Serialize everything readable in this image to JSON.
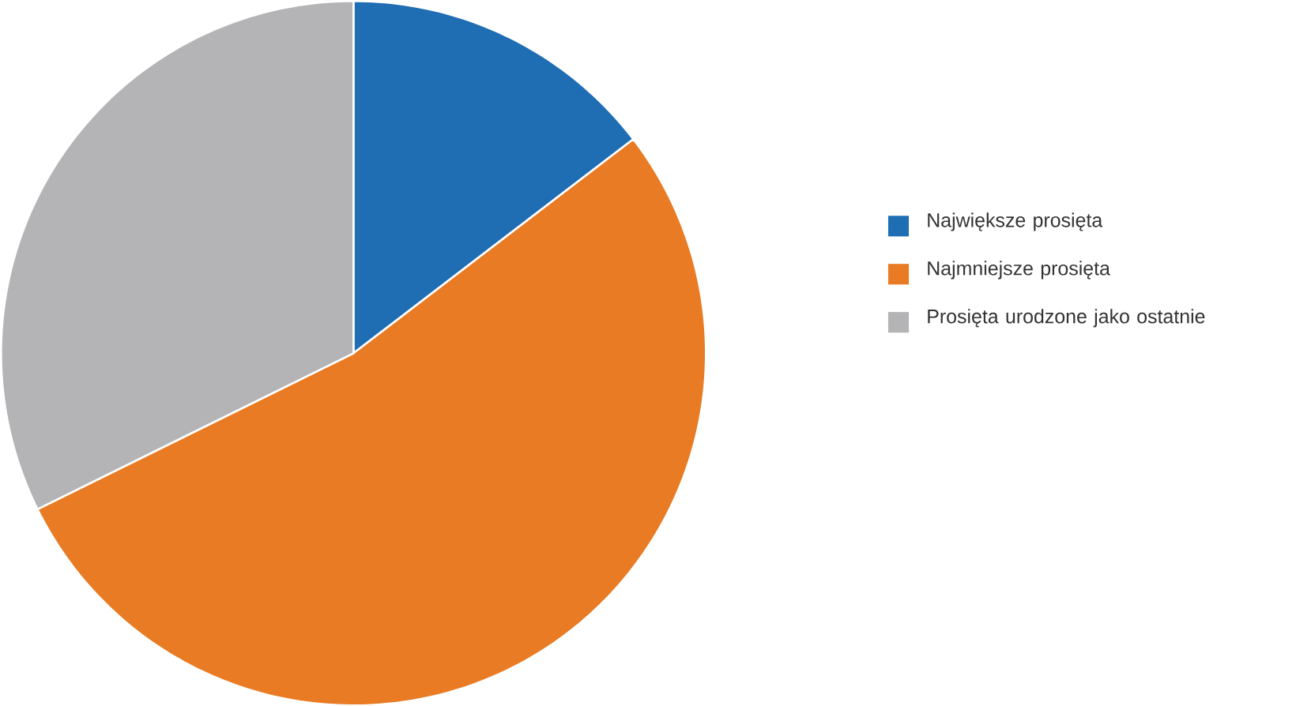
{
  "chart_data": {
    "type": "pie",
    "categories": [
      "Największe prosięta",
      "Najmniejsze prosięta",
      "Prosięta urodzone jako ostatnie"
    ],
    "values": [
      14.6,
      53.1,
      32.3
    ],
    "colors": [
      "#1f6db3",
      "#e87b23",
      "#b4b4b6"
    ],
    "legend": "right"
  }
}
